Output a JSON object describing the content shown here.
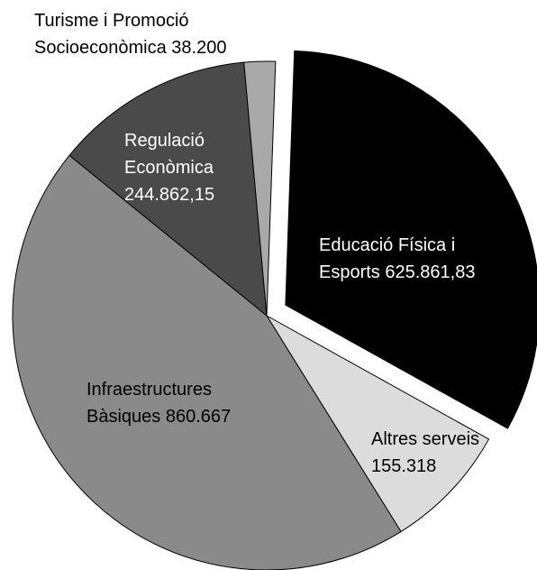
{
  "chart_data": {
    "type": "pie",
    "slices": [
      {
        "label_lines": [
          "Educació Física i",
          "Esports 625.861,83"
        ],
        "value": 625861.83,
        "color": "#000000",
        "text_color": "#ffffff",
        "exploded": true
      },
      {
        "label_lines": [
          "Altres serveis",
          "155.318"
        ],
        "value": 155318,
        "color": "#dcdcdc",
        "text_color": "#000000",
        "exploded": false
      },
      {
        "label_lines": [
          "Infraestructures",
          "Bàsiques 860.667"
        ],
        "value": 860667,
        "color": "#8a8a8a",
        "text_color": "#000000",
        "exploded": false
      },
      {
        "label_lines": [
          "Regulació",
          "Econòmica",
          "244.862,15"
        ],
        "value": 244862.15,
        "color": "#4a4a4a",
        "text_color": "#ffffff",
        "exploded": false
      },
      {
        "label_lines": [
          "Turisme i Promoció",
          "Socioeconòmica 38.200"
        ],
        "value": 38200,
        "color": "#a9a9a9",
        "text_color": "#000000",
        "exploded": false
      }
    ]
  }
}
